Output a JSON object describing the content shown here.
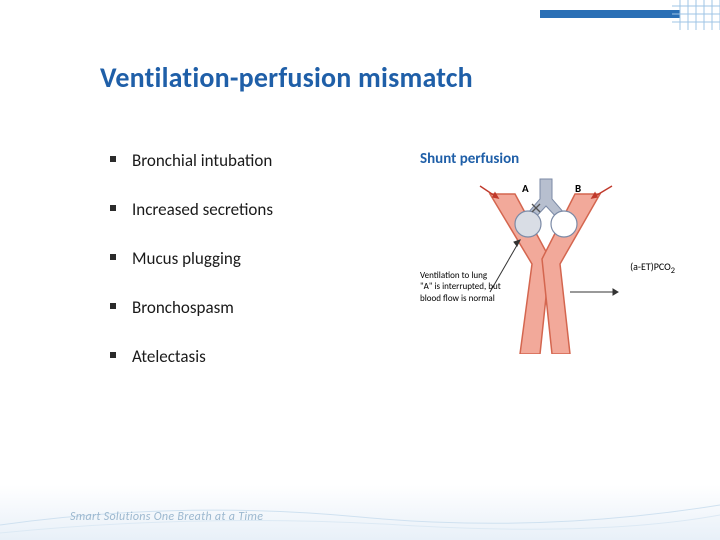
{
  "title": {
    "text": "Ventilation-perfusion mismatch",
    "color": "#1f5fa8",
    "fontsize": 28
  },
  "bullets": {
    "marker_color": "#2b2b2b",
    "text_color": "#1a1a1a",
    "fontsize": 17,
    "items": [
      "Bronchial intubation",
      " Increased secretions",
      "Mucus plugging",
      "Bronchospasm",
      "Atelectasis"
    ]
  },
  "diagram": {
    "title": "Shunt perfusion",
    "title_color": "#1f5fa8",
    "label_a": "A",
    "label_b": "B",
    "vessel_color": "#f2a99a",
    "vessel_stroke": "#d4664f",
    "airway_color": "#b7bfcf",
    "airway_stroke": "#7b8aa6",
    "alveolus_a_fill": "#d9dde5",
    "alveolus_b_fill": "#ffffff",
    "sub_color": "#333333",
    "caption_left_line1": "Ventilation to lung",
    "caption_left_line2": "\"A\" is interrupted, but",
    "caption_left_line3": "blood flow is normal",
    "caption_right": "(a-ET)PCO",
    "caption_right_sub": "2",
    "arrow_color": "#c0392b"
  },
  "footer": {
    "tagline": "Smart Solutions One Breath at a Time",
    "tagline_color": "#9cb8cf",
    "gradient_from": "#e8f0f8",
    "gradient_to": "#ffffff"
  },
  "top_accent": {
    "bar_color": "#2a6fb5",
    "grid_color": "#9fc4e6"
  }
}
